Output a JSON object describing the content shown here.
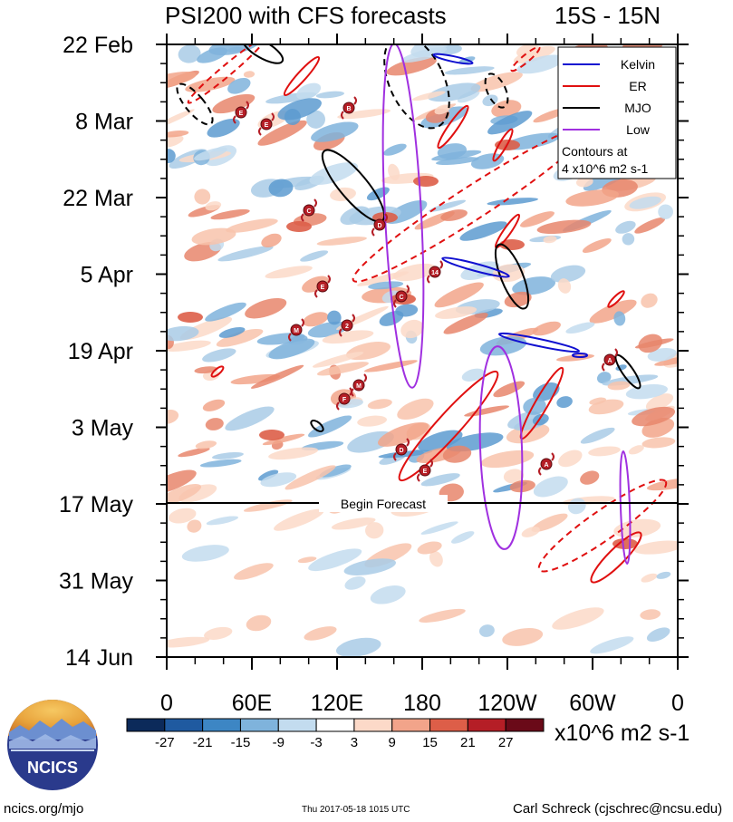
{
  "title_left": "PSI200 with CFS forecasts",
  "title_right": "15S - 15N",
  "chart_data": {
    "type": "heatmap",
    "variable": "PSI200",
    "y_ticks": [
      "22 Feb",
      "8 Mar",
      "22 Mar",
      "5 Apr",
      "19 Apr",
      "3 May",
      "17 May",
      "31 May",
      "14 Jun"
    ],
    "x_ticks": [
      "0",
      "60E",
      "120E",
      "180",
      "120W",
      "60W",
      "0"
    ],
    "forecast_label": "Begin Forecast",
    "legend": [
      {
        "name": "Kelvin",
        "color": "#1010d0"
      },
      {
        "name": "ER",
        "color": "#e01010"
      },
      {
        "name": "MJO",
        "color": "#000000"
      },
      {
        "name": "Low",
        "color": "#a030e0"
      }
    ],
    "contour_note_line1": "Contours at",
    "contour_note_line2": "4 x10^6 m2 s-1",
    "colorbar_labels": [
      "-27",
      "-21",
      "-15",
      "-9",
      "-3",
      "3",
      "9",
      "15",
      "21",
      "27"
    ],
    "colorbar_colors": [
      "#0c2a5a",
      "#1f5aa0",
      "#3d86c4",
      "#7fb3dc",
      "#c3dcef",
      "#ffffff",
      "#fcd9c8",
      "#f2a48a",
      "#dd5e48",
      "#b51e26",
      "#6a0a18"
    ],
    "units": "x10^6 m2 s-1",
    "storm_labels": [
      "E",
      "E",
      "B",
      "C",
      "D",
      "E",
      "C",
      "14",
      "M",
      "2",
      "M",
      "F",
      "D",
      "E",
      "A",
      "A"
    ]
  },
  "logo_text": "NCICS",
  "footer_left": "ncics.org/mjo",
  "footer_center": "Thu 2017-05-18 1015 UTC",
  "footer_right": "Carl Schreck (cjschrec@ncsu.edu)"
}
